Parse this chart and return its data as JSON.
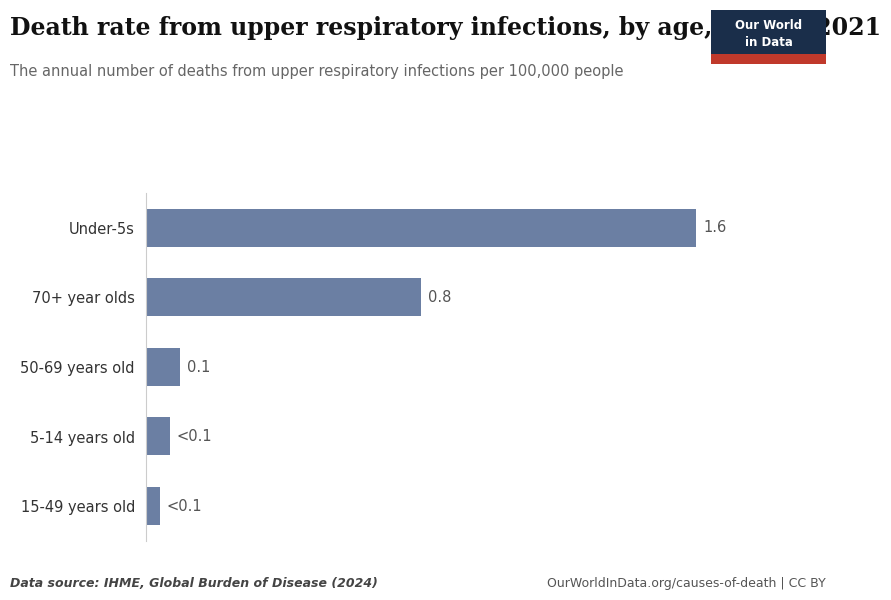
{
  "title": "Death rate from upper respiratory infections, by age, World, 2021",
  "subtitle": "The annual number of deaths from upper respiratory infections per 100,000 people",
  "categories": [
    "Under-5s",
    "70+ year olds",
    "50-69 years old",
    "5-14 years old",
    "15-49 years old"
  ],
  "values": [
    1.6,
    0.8,
    0.1,
    0.07,
    0.04
  ],
  "labels": [
    "1.6",
    "0.8",
    "0.1",
    "<0.1",
    "<0.1"
  ],
  "bar_color": "#6b7fa3",
  "background_color": "#ffffff",
  "title_fontsize": 17,
  "subtitle_fontsize": 10.5,
  "label_fontsize": 10.5,
  "tick_fontsize": 10.5,
  "footer_left": "Data source: IHME, Global Burden of Disease (2024)",
  "footer_right": "OurWorldInData.org/causes-of-death | CC BY",
  "owid_box_color": "#1a2e4a",
  "owid_box_red": "#c0392b",
  "xlim": [
    0,
    1.78
  ]
}
